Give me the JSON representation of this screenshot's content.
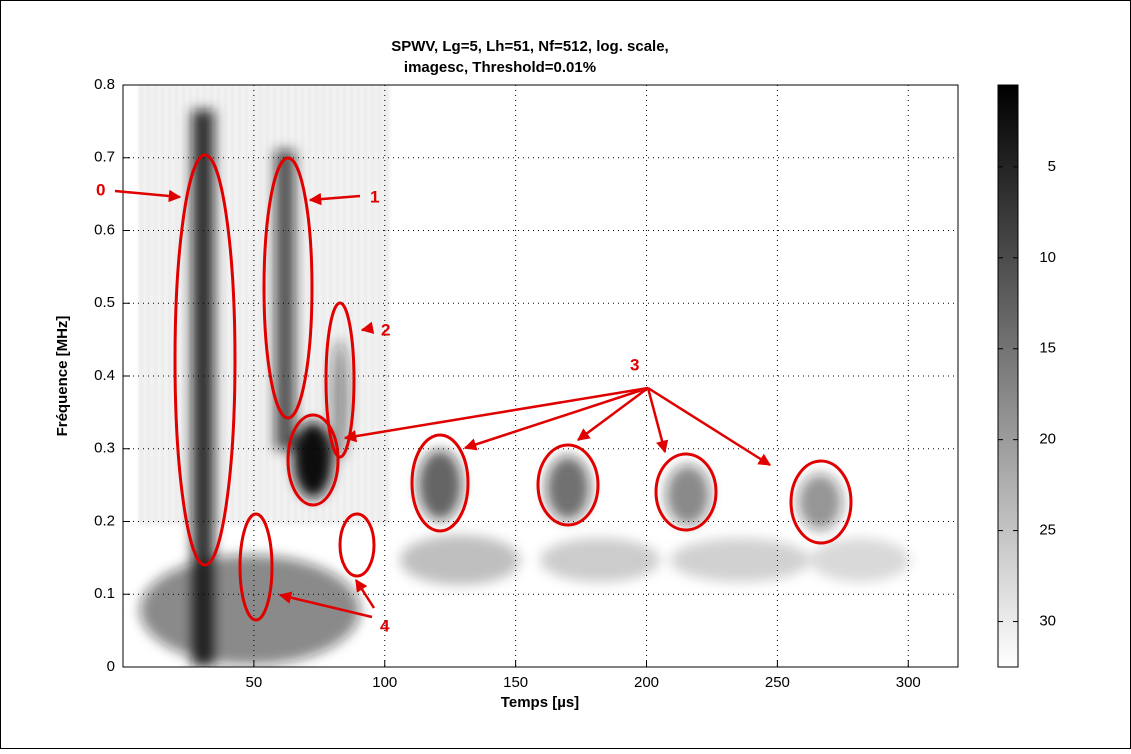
{
  "chart_data": {
    "type": "image",
    "title": [
      "SPWV, Lg=5, Lh=51, Nf=512, log. scale,",
      "imagesc, Threshold=0.01%"
    ],
    "x_label": "Temps [µs]",
    "y_label": "Fréquence [MHz]",
    "xlim": [
      0,
      319
    ],
    "xticks": [
      50,
      100,
      150,
      200,
      250,
      300
    ],
    "ylim": [
      0,
      0.8
    ],
    "yticks": [
      0,
      0.1,
      0.2,
      0.3,
      0.4,
      0.5,
      0.6,
      0.7,
      0.8
    ],
    "grid": true,
    "colormap": "gray",
    "colorbar_direction": "reverse",
    "clim": [
      0.5,
      32.5
    ],
    "cticks": [
      5,
      10,
      15,
      20,
      25,
      30
    ],
    "annotations": [
      "0",
      "1",
      "2",
      "3",
      "4"
    ]
  }
}
